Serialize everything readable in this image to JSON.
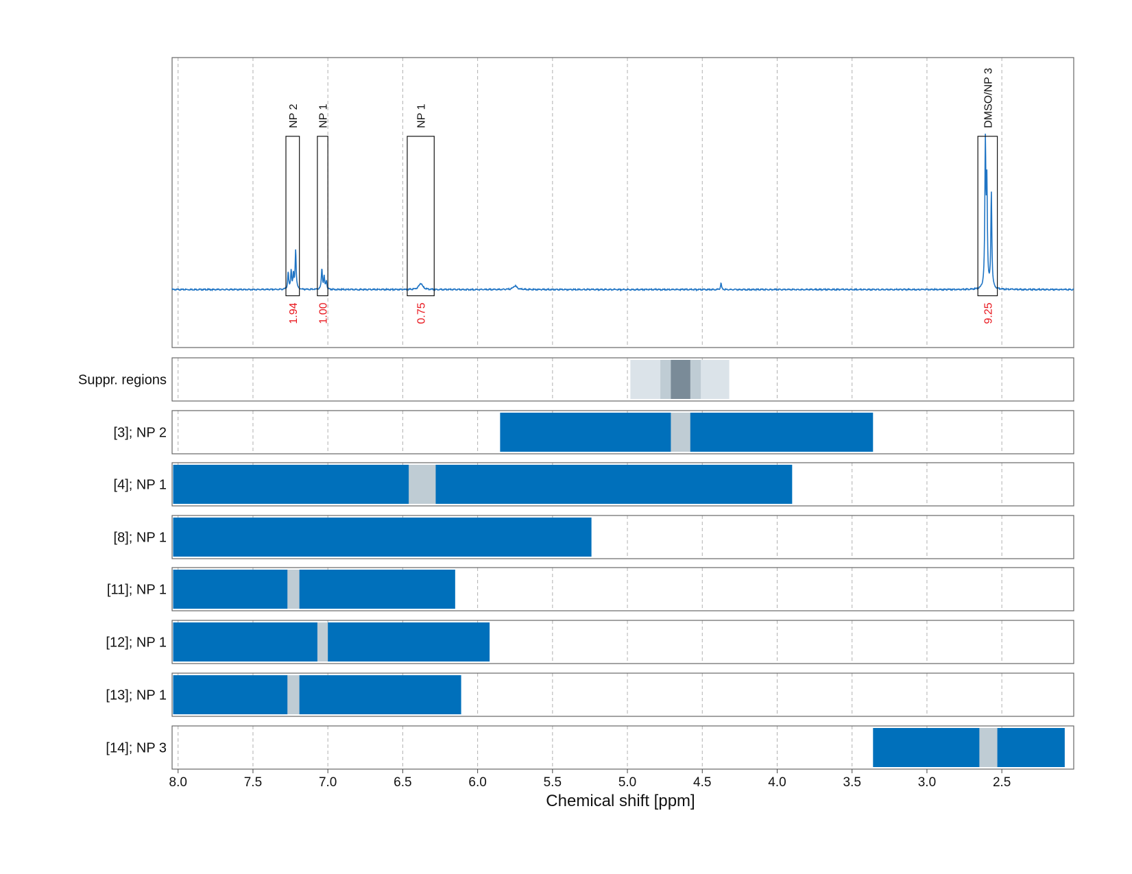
{
  "chart_data": {
    "type": "line",
    "xlabel": "Chemical shift [ppm]",
    "xlim": [
      8.04,
      2.02
    ],
    "x_reversed": true,
    "xticks": [
      8.0,
      7.5,
      7.0,
      6.5,
      6.0,
      5.5,
      5.0,
      4.5,
      4.0,
      3.5,
      3.0,
      2.5
    ],
    "xtick_labels": [
      "8.0",
      "7.5",
      "7.0",
      "6.5",
      "6.0",
      "5.5",
      "5.0",
      "4.5",
      "4.0",
      "3.5",
      "3.0",
      "2.5"
    ],
    "grid": true,
    "colors": {
      "spectrum": "#1f74c4",
      "bar": "#0070bb",
      "suppressed_in_bar": "#bfccd4",
      "suppr_light": "#dbe3e9",
      "suppr_mid": "#bfccd4",
      "suppr_dark": "#7a8b98",
      "integral_text": "#e8141b"
    },
    "spectrum": {
      "ylim": [
        -0.28,
        1.12
      ],
      "baseline": 0.0,
      "peaks": [
        {
          "center": 7.265,
          "width": 0.004,
          "height": 0.08
        },
        {
          "center": 7.245,
          "width": 0.004,
          "height": 0.09
        },
        {
          "center": 7.23,
          "width": 0.004,
          "height": 0.07
        },
        {
          "center": 7.215,
          "width": 0.004,
          "height": 0.19
        },
        {
          "center": 7.04,
          "width": 0.004,
          "height": 0.1
        },
        {
          "center": 7.025,
          "width": 0.004,
          "height": 0.06
        },
        {
          "center": 7.01,
          "width": 0.004,
          "height": 0.04
        },
        {
          "center": 6.38,
          "width": 0.015,
          "height": 0.03
        },
        {
          "center": 5.75,
          "width": 0.015,
          "height": 0.018
        },
        {
          "center": 4.375,
          "width": 0.004,
          "height": 0.03
        },
        {
          "center": 2.61,
          "width": 0.004,
          "height": 0.68
        },
        {
          "center": 2.6,
          "width": 0.004,
          "height": 0.48
        },
        {
          "center": 2.57,
          "width": 0.004,
          "height": 0.46
        }
      ],
      "annotations": [
        {
          "label": "NP 2",
          "from": 7.28,
          "to": 7.19,
          "integral": "1.94"
        },
        {
          "label": "NP 1",
          "from": 7.07,
          "to": 7.0,
          "integral": "1.00"
        },
        {
          "label": "NP 1",
          "from": 6.47,
          "to": 6.29,
          "integral": "0.75"
        },
        {
          "label": "DMSO/NP 3",
          "from": 2.66,
          "to": 2.53,
          "integral": "9.25"
        }
      ]
    },
    "rows": [
      {
        "label": "Suppr. regions",
        "kind": "suppression",
        "layers": [
          {
            "from": 4.98,
            "to": 4.32,
            "shade": "suppr_light"
          },
          {
            "from": 4.78,
            "to": 4.51,
            "shade": "suppr_mid"
          },
          {
            "from": 4.71,
            "to": 4.58,
            "shade": "suppr_dark"
          }
        ]
      },
      {
        "label": "[3]; NP 2",
        "kind": "bar",
        "from": 5.85,
        "to": 3.36,
        "gaps": [
          {
            "from": 4.71,
            "to": 4.58
          }
        ]
      },
      {
        "label": "[4]; NP 1",
        "kind": "bar",
        "from": 8.04,
        "to": 3.9,
        "gaps": [
          {
            "from": 6.46,
            "to": 6.28
          }
        ]
      },
      {
        "label": "[8]; NP 1",
        "kind": "bar",
        "from": 8.04,
        "to": 5.24,
        "gaps": []
      },
      {
        "label": "[11]; NP 1",
        "kind": "bar",
        "from": 8.04,
        "to": 6.15,
        "gaps": [
          {
            "from": 7.27,
            "to": 7.19
          }
        ]
      },
      {
        "label": "[12]; NP 1",
        "kind": "bar",
        "from": 8.04,
        "to": 5.92,
        "gaps": [
          {
            "from": 7.07,
            "to": 7.0
          }
        ]
      },
      {
        "label": "[13]; NP 1",
        "kind": "bar",
        "from": 8.04,
        "to": 6.11,
        "gaps": [
          {
            "from": 7.27,
            "to": 7.19
          }
        ]
      },
      {
        "label": "[14]; NP 3",
        "kind": "bar",
        "from": 3.36,
        "to": 2.08,
        "gaps": [
          {
            "from": 2.65,
            "to": 2.53
          }
        ]
      }
    ]
  }
}
